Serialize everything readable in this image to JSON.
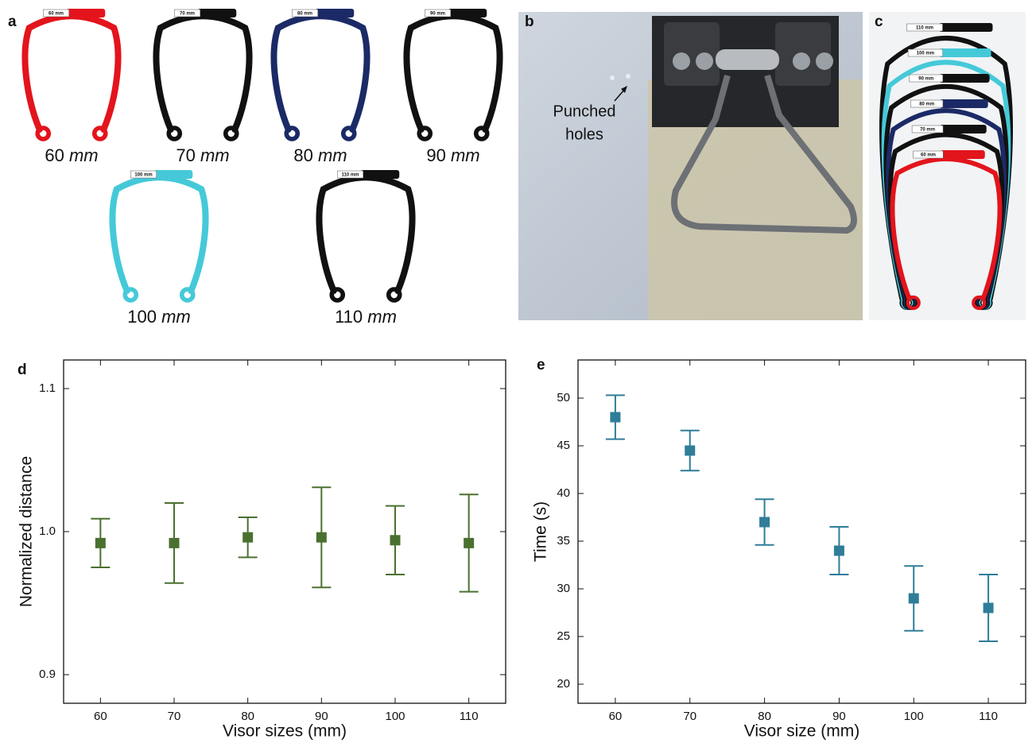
{
  "panel_labels": [
    "a",
    "b",
    "c",
    "d",
    "e"
  ],
  "visors": [
    {
      "tag": "60 mm",
      "size": "60",
      "unit": "mm",
      "color": "#e3141c"
    },
    {
      "tag": "70 mm",
      "size": "70",
      "unit": "mm",
      "color": "#111111"
    },
    {
      "tag": "80 mm",
      "size": "80",
      "unit": "mm",
      "color": "#1b2a66"
    },
    {
      "tag": "90 mm",
      "size": "90",
      "unit": "mm",
      "color": "#111111"
    },
    {
      "tag": "100 mm",
      "size": "100",
      "unit": "mm",
      "color": "#45c9d9"
    },
    {
      "tag": "110 mm",
      "size": "110",
      "unit": "mm",
      "color": "#111111"
    }
  ],
  "photo_b": {
    "annotation": [
      "Punched",
      "holes"
    ]
  },
  "chart_data": [
    {
      "type": "scatter",
      "x": [
        60,
        70,
        80,
        90,
        100,
        110
      ],
      "series": [
        {
          "color": "#4a7030",
          "values": [
            0.992,
            0.992,
            0.996,
            0.996,
            0.994,
            0.992
          ],
          "errors": [
            0.017,
            0.028,
            0.014,
            0.035,
            0.024,
            0.034
          ]
        }
      ],
      "xlabel": "Visor sizes (mm)",
      "ylabel": "Normalized distance",
      "xlim": [
        55,
        115
      ],
      "ylim": [
        0.88,
        1.12
      ],
      "xticks": [
        60,
        70,
        80,
        90,
        100,
        110
      ],
      "yticks": [
        0.9,
        {
          "value": 1.0,
          "label": "1.0"
        },
        1.1
      ]
    },
    {
      "type": "scatter",
      "x": [
        60,
        70,
        80,
        90,
        100,
        110
      ],
      "series": [
        {
          "color": "#2f7d98",
          "values": [
            48,
            44.5,
            37,
            34,
            29,
            28
          ],
          "errors": [
            2.3,
            2.1,
            2.4,
            2.5,
            3.4,
            3.5
          ]
        }
      ],
      "xlabel": "Visor size (mm)",
      "ylabel": "Time (s)",
      "xlim": [
        55,
        115
      ],
      "ylim": [
        18,
        54
      ],
      "xticks": [
        60,
        70,
        80,
        90,
        100,
        110
      ],
      "yticks": [
        20,
        25,
        30,
        35,
        40,
        45,
        50
      ]
    }
  ]
}
